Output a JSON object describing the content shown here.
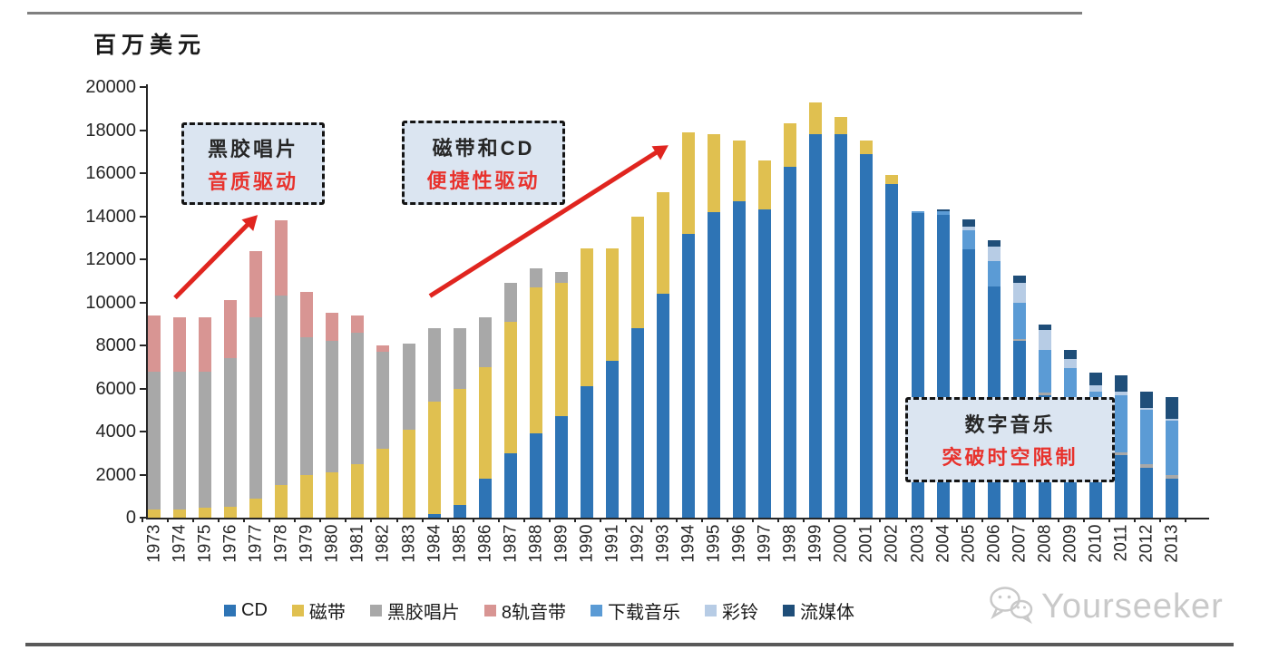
{
  "unit_label": "百万美元",
  "annotations": [
    {
      "line1": "黑胶唱片",
      "line2": "音质驱动"
    },
    {
      "line1": "磁带和CD",
      "line2": "便捷性驱动"
    },
    {
      "line1": "数字音乐",
      "line2": "突破时空限制"
    }
  ],
  "watermark": {
    "text": "Yourseeker",
    "icon": "wechat-chat-bubbles-icon"
  },
  "colors": {
    "cd": "#2e74b5",
    "cassette": "#e0c050",
    "vinyl": "#a8a8a8",
    "eight_track": "#d89593",
    "download": "#5b9bd5",
    "ringtone": "#b7cce5",
    "streaming": "#1f4e79",
    "callout_bg": "#dbe5f1",
    "callout_text_red": "#e8322d",
    "arrow_red": "#e0251f"
  },
  "chart_data": {
    "type": "bar",
    "stacked": true,
    "title": "",
    "ylabel": "百万美元",
    "xlabel": "",
    "ylim": [
      0,
      20000
    ],
    "ytick_step": 2000,
    "grid": false,
    "legend_position": "bottom",
    "categories": [
      1973,
      1974,
      1975,
      1976,
      1977,
      1978,
      1979,
      1980,
      1981,
      1982,
      1983,
      1984,
      1985,
      1986,
      1987,
      1988,
      1989,
      1990,
      1991,
      1992,
      1993,
      1994,
      1995,
      1996,
      1997,
      1998,
      1999,
      2000,
      2001,
      2002,
      2003,
      2004,
      2005,
      2006,
      2007,
      2008,
      2009,
      2010,
      2011,
      2012,
      2013
    ],
    "series": [
      {
        "name": "CD",
        "color": "#2e74b5",
        "values": [
          0,
          0,
          0,
          0,
          0,
          0,
          0,
          0,
          0,
          0,
          0,
          150,
          600,
          1800,
          3000,
          3900,
          4700,
          6100,
          7300,
          8800,
          10400,
          13200,
          14200,
          14700,
          14300,
          16300,
          17800,
          17800,
          16900,
          15500,
          14150,
          14050,
          12450,
          10750,
          8200,
          5700,
          4800,
          3650,
          2900,
          2300,
          1800
        ]
      },
      {
        "name": "磁带",
        "color": "#e0c050",
        "values": [
          400,
          400,
          450,
          500,
          900,
          1500,
          2000,
          2100,
          2500,
          3200,
          4100,
          5250,
          5400,
          5200,
          6100,
          6800,
          6200,
          6400,
          5200,
          5200,
          4700,
          4700,
          3600,
          2800,
          2300,
          2000,
          1500,
          800,
          600,
          400,
          0,
          0,
          0,
          0,
          0,
          0,
          0,
          0,
          0,
          0,
          0
        ]
      },
      {
        "name": "黑胶唱片",
        "color": "#a8a8a8",
        "values": [
          6400,
          6400,
          6350,
          6900,
          8400,
          8800,
          6400,
          6100,
          6100,
          4500,
          4000,
          3400,
          2800,
          2300,
          1800,
          900,
          500,
          0,
          0,
          0,
          0,
          0,
          0,
          0,
          0,
          0,
          0,
          0,
          0,
          0,
          0,
          0,
          0,
          0,
          100,
          100,
          100,
          100,
          150,
          200,
          200
        ]
      },
      {
        "name": "8轨音带",
        "color": "#d89593",
        "values": [
          2600,
          2500,
          2500,
          2700,
          3100,
          3500,
          2100,
          1300,
          800,
          300,
          0,
          0,
          0,
          0,
          0,
          0,
          0,
          0,
          0,
          0,
          0,
          0,
          0,
          0,
          0,
          0,
          0,
          0,
          0,
          0,
          0,
          0,
          0,
          0,
          0,
          0,
          0,
          0,
          0,
          0,
          0
        ]
      },
      {
        "name": "下载音乐",
        "color": "#5b9bd5",
        "values": [
          0,
          0,
          0,
          0,
          0,
          0,
          0,
          0,
          0,
          0,
          0,
          0,
          0,
          0,
          0,
          0,
          0,
          0,
          0,
          0,
          0,
          0,
          0,
          0,
          0,
          0,
          0,
          0,
          0,
          0,
          100,
          200,
          900,
          1150,
          1700,
          2000,
          2050,
          2100,
          2650,
          2500,
          2500
        ]
      },
      {
        "name": "彩铃",
        "color": "#b7cce5",
        "values": [
          0,
          0,
          0,
          0,
          0,
          0,
          0,
          0,
          0,
          0,
          0,
          0,
          0,
          0,
          0,
          0,
          0,
          0,
          0,
          0,
          0,
          0,
          0,
          0,
          0,
          0,
          0,
          0,
          0,
          0,
          0,
          0,
          150,
          700,
          900,
          900,
          400,
          300,
          150,
          100,
          100
        ]
      },
      {
        "name": "流媒体",
        "color": "#1f4e79",
        "values": [
          0,
          0,
          0,
          0,
          0,
          0,
          0,
          0,
          0,
          0,
          0,
          0,
          0,
          0,
          0,
          0,
          0,
          0,
          0,
          0,
          0,
          0,
          0,
          0,
          0,
          0,
          0,
          0,
          0,
          0,
          0,
          50,
          350,
          300,
          350,
          250,
          450,
          600,
          750,
          750,
          1000
        ]
      }
    ]
  }
}
